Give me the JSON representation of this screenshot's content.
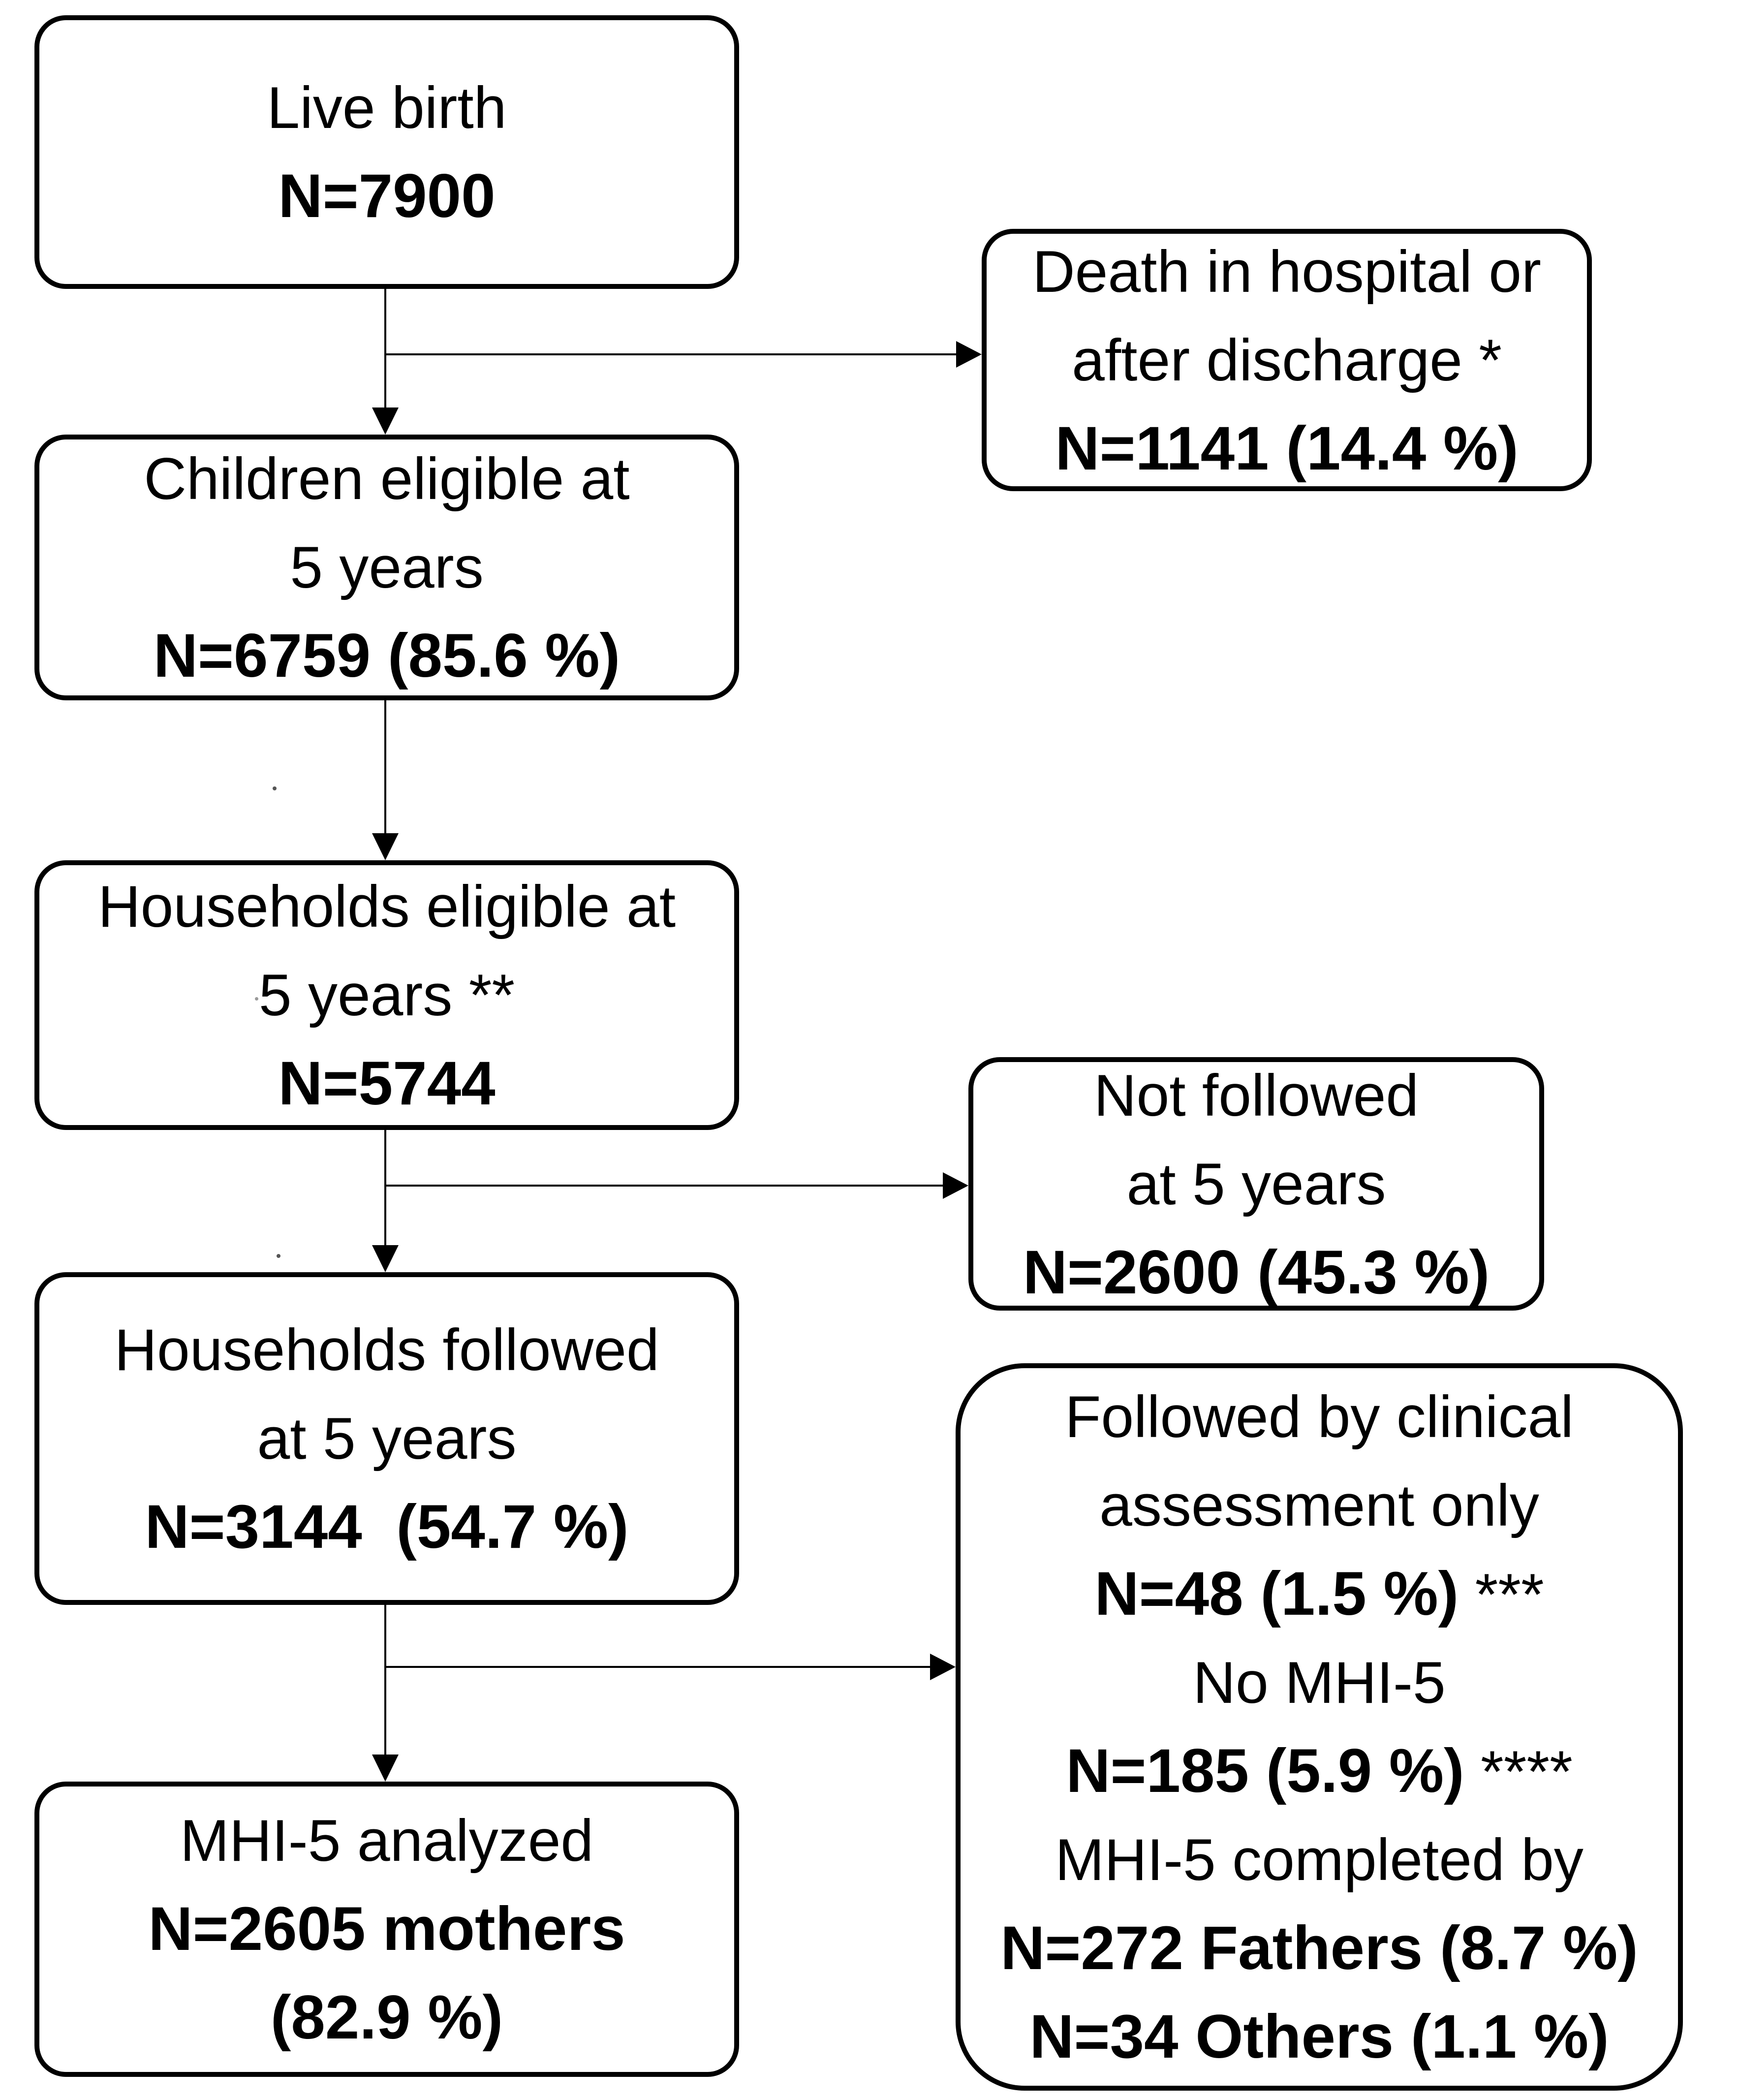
{
  "diagram": {
    "type": "flowchart",
    "background_color": "#ffffff",
    "line_color": "#000000",
    "text_color": "#000000",
    "nodes": {
      "live_birth": {
        "lines": [
          {
            "parts": [
              {
                "text": "Live birth",
                "bold": false
              }
            ]
          },
          {
            "parts": [
              {
                "text": "N=7900",
                "bold": true
              }
            ]
          }
        ]
      },
      "death": {
        "lines": [
          {
            "parts": [
              {
                "text": "Death in hospital or",
                "bold": false
              }
            ]
          },
          {
            "parts": [
              {
                "text": "after discharge *",
                "bold": false
              }
            ]
          },
          {
            "parts": [
              {
                "text": "N=1141 (14.4 %)",
                "bold": true
              }
            ]
          }
        ]
      },
      "children_eligible": {
        "lines": [
          {
            "parts": [
              {
                "text": "Children eligible at",
                "bold": false
              }
            ]
          },
          {
            "parts": [
              {
                "text": "5 years",
                "bold": false
              }
            ]
          },
          {
            "parts": [
              {
                "text": "N=6759 (85.6 %)",
                "bold": true
              }
            ]
          }
        ]
      },
      "households_eligible": {
        "lines": [
          {
            "parts": [
              {
                "text": "Households eligible at",
                "bold": false
              }
            ]
          },
          {
            "parts": [
              {
                "text": "5 years **",
                "bold": false
              }
            ]
          },
          {
            "parts": [
              {
                "text": "N=5744",
                "bold": true
              }
            ]
          }
        ]
      },
      "not_followed": {
        "lines": [
          {
            "parts": [
              {
                "text": "Not followed",
                "bold": false
              }
            ]
          },
          {
            "parts": [
              {
                "text": "at 5 years",
                "bold": false
              }
            ]
          },
          {
            "parts": [
              {
                "text": "N=2600 (45.3 %)",
                "bold": true
              }
            ]
          }
        ]
      },
      "households_followed": {
        "lines": [
          {
            "parts": [
              {
                "text": "Households followed",
                "bold": false
              }
            ]
          },
          {
            "parts": [
              {
                "text": "at 5 years",
                "bold": false
              }
            ]
          },
          {
            "parts": [
              {
                "text": "N=3144  (54.7 %)",
                "bold": true
              }
            ]
          }
        ]
      },
      "followed_clinical": {
        "lines": [
          {
            "parts": [
              {
                "text": "Followed by clinical",
                "bold": false
              }
            ]
          },
          {
            "parts": [
              {
                "text": "assessment only",
                "bold": false
              }
            ]
          },
          {
            "parts": [
              {
                "text": "N=48 (1.5 %)",
                "bold": true
              },
              {
                "text": " ***",
                "bold": false
              }
            ]
          },
          {
            "parts": [
              {
                "text": "No MHI-5",
                "bold": false
              }
            ]
          },
          {
            "parts": [
              {
                "text": "N=185 (5.9 %)",
                "bold": true
              },
              {
                "text": " ****",
                "bold": false
              }
            ]
          },
          {
            "parts": [
              {
                "text": "MHI-5 completed by",
                "bold": false
              }
            ]
          },
          {
            "parts": [
              {
                "text": "N=272 Fathers (8.7 %)",
                "bold": true
              }
            ]
          },
          {
            "parts": [
              {
                "text": "N=34 Others (1.1 %)",
                "bold": true
              }
            ]
          }
        ]
      },
      "mhi5_analyzed": {
        "lines": [
          {
            "parts": [
              {
                "text": "MHI-5 analyzed",
                "bold": false
              }
            ]
          },
          {
            "parts": [
              {
                "text": "N=2605 mothers",
                "bold": true
              }
            ]
          },
          {
            "parts": [
              {
                "text": "(82.9 %)",
                "bold": true
              }
            ]
          }
        ]
      }
    }
  }
}
